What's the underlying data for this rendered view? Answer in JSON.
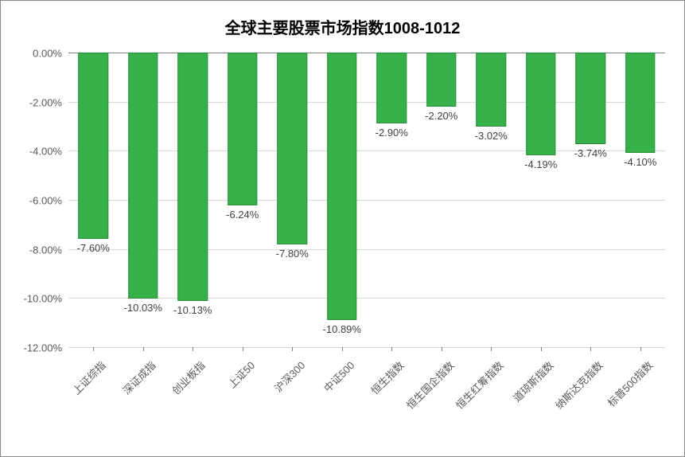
{
  "chart": {
    "type": "bar",
    "title": "全球主要股票市场指数1008-1012",
    "title_fontsize": 20,
    "title_color": "#000000",
    "background_color": "#ffffff",
    "border_color": "#888888",
    "plot": {
      "ylim_min": -12.0,
      "ylim_max": 0.0,
      "ytick_step": 2.0,
      "ytick_format_suffix": "%",
      "ytick_decimals": 2,
      "grid_color": "#d9d9d9",
      "baseline_color": "#808080",
      "tick_label_color": "#595959",
      "tick_fontsize": 13
    },
    "bar_style": {
      "fill_color": "#36b14a",
      "border_color": "#2a8d3b",
      "width_ratio": 0.6,
      "label_fontsize": 13,
      "label_color": "#404040"
    },
    "categories": [
      "上证综指",
      "深证成指",
      "创业板指",
      "上证50",
      "沪深300",
      "中证500",
      "恒生指数",
      "恒生国企指数",
      "恒生红筹指数",
      "道琼斯指数",
      "纳斯达克指数",
      "标普500指数"
    ],
    "values": [
      -7.6,
      -10.03,
      -10.13,
      -6.24,
      -7.8,
      -10.89,
      -2.9,
      -2.2,
      -3.02,
      -4.19,
      -3.74,
      -4.1
    ],
    "value_labels": [
      "-7.60%",
      "-10.03%",
      "-10.13%",
      "-6.24%",
      "-7.80%",
      "-10.89%",
      "-2.90%",
      "-2.20%",
      "-3.02%",
      "-4.19%",
      "-3.74%",
      "-4.10%"
    ],
    "x_label_rotation_deg": -45
  }
}
